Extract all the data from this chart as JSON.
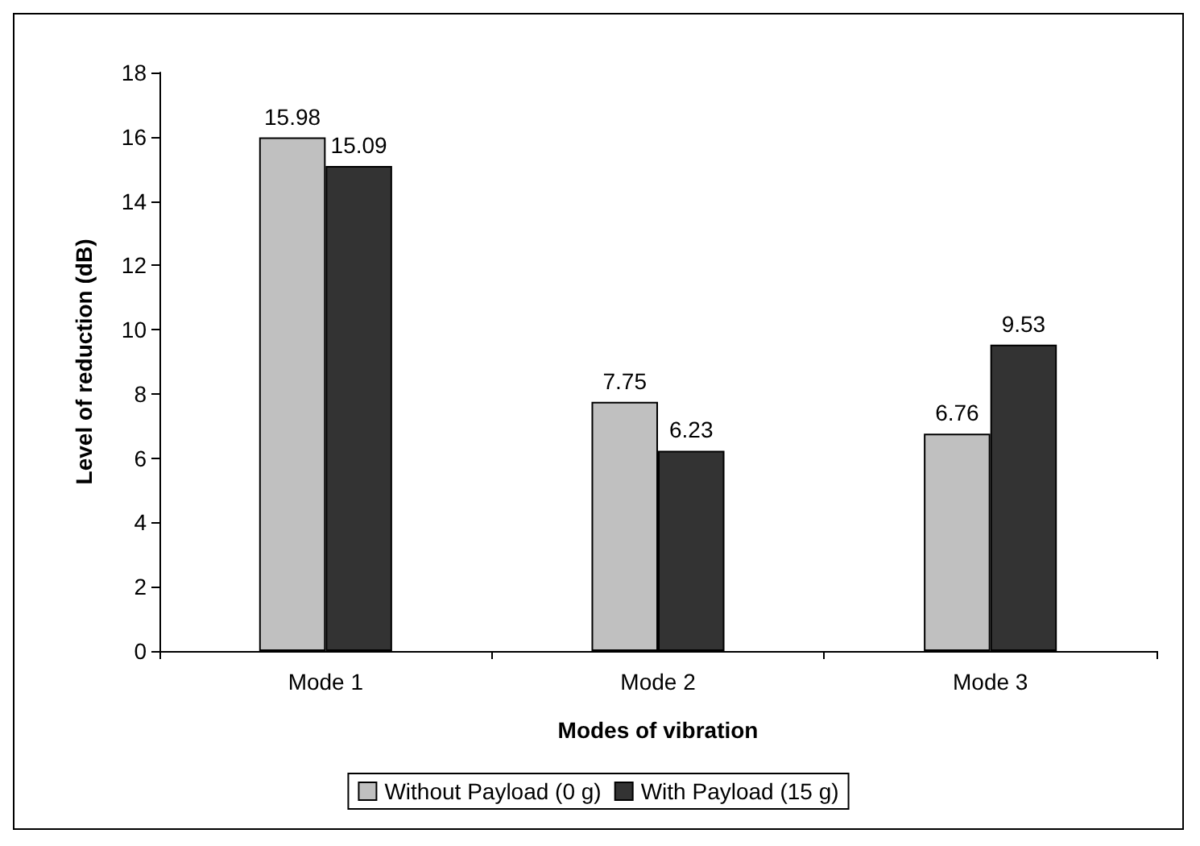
{
  "chart_data": {
    "type": "bar",
    "xlabel": "Modes of vibration",
    "ylabel": "Level of reduction (dB)",
    "categories": [
      "Mode 1",
      "Mode 2",
      "Mode 3"
    ],
    "series": [
      {
        "name": "Without Payload (0 g)",
        "color": "#c0c0c0",
        "values": [
          15.98,
          7.75,
          6.76
        ]
      },
      {
        "name": "With Payload (15 g)",
        "color": "#333333",
        "values": [
          15.09,
          6.23,
          9.53
        ]
      }
    ],
    "ylim": [
      0,
      18
    ],
    "yticks": [
      0,
      2,
      4,
      6,
      8,
      10,
      12,
      14,
      16,
      18
    ],
    "grid": false,
    "legend": "bottom",
    "data_labels": true
  }
}
